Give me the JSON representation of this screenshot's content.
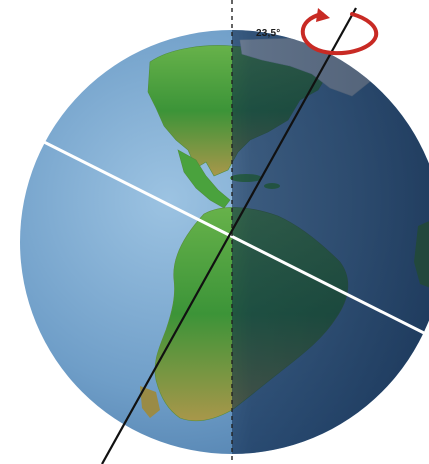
{
  "diagram": {
    "tilt_label": "23,5°",
    "colors": {
      "ocean_day": "#7aa8cf",
      "ocean_night": "#1f4a78",
      "land_green": "#3f9a3a",
      "land_dark": "#2a6a34",
      "land_desert": "#b5a04a",
      "ice": "#e9eef2",
      "rotation_arrow": "#c82a24",
      "equator_line": "#ffffff",
      "axis": "#111111",
      "meridian_dashed": "#222222"
    }
  }
}
